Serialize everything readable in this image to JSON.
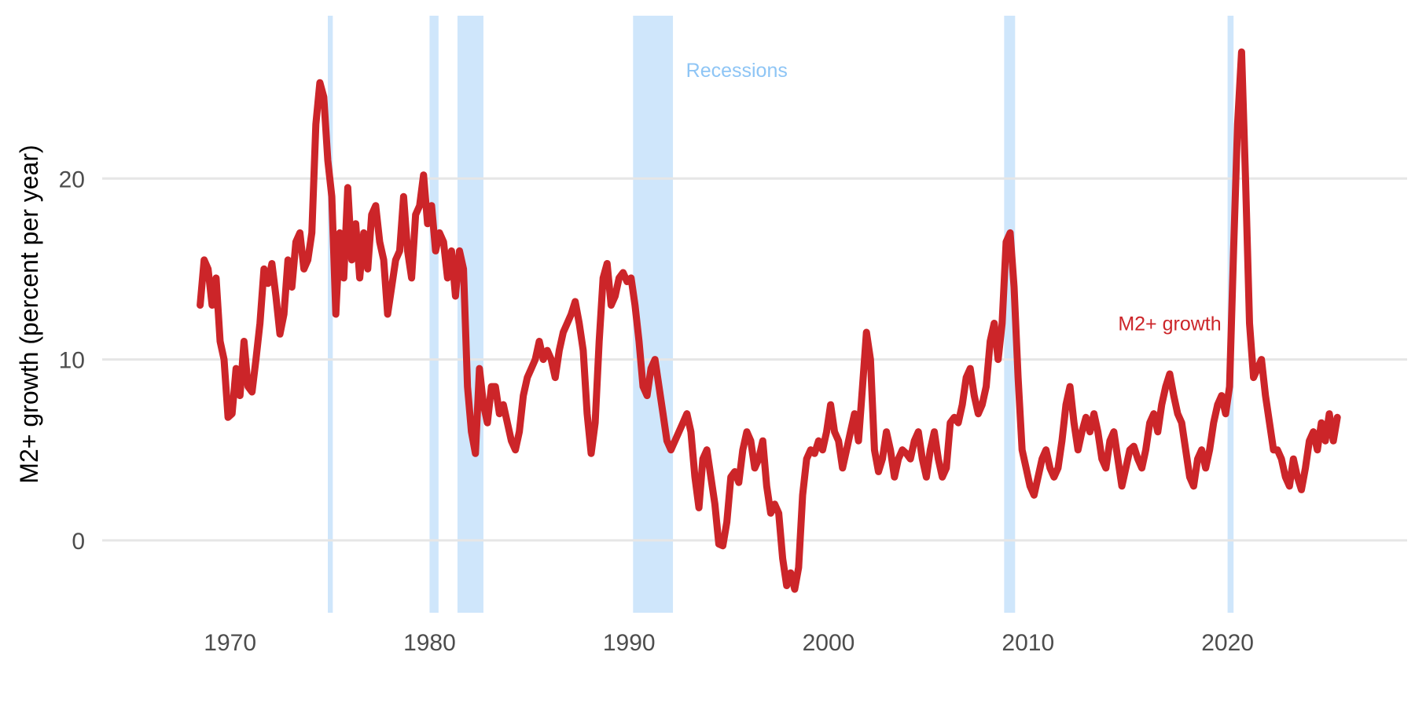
{
  "chart_data": {
    "type": "line",
    "title": "",
    "xlabel": "",
    "ylabel": "M2+ growth (percent per year)",
    "xlim": [
      1963,
      2029
    ],
    "ylim": [
      -4,
      29
    ],
    "x_ticks": [
      1970,
      1980,
      1990,
      2000,
      2010,
      2020
    ],
    "y_ticks": [
      0,
      10,
      20
    ],
    "grid": "horizontal major gridlines",
    "legend": "none (direct labels)",
    "colors": {
      "series": "#cc2529",
      "recession": "#cfe6fb",
      "recession_label": "#8ec5f5",
      "grid": "#e6e6e6"
    },
    "annotations": [
      {
        "text": "Recessions",
        "x": 1995.4,
        "y": 26,
        "color": "#8ec5f5"
      },
      {
        "text": "M2+ growth",
        "x": 2017.1,
        "y": 12,
        "color": "#cc2529"
      }
    ],
    "recessions": [
      [
        1974.9,
        1975.15
      ],
      [
        1980.0,
        1980.45
      ],
      [
        1981.4,
        1982.7
      ],
      [
        1990.2,
        1992.2
      ],
      [
        2008.8,
        2009.35
      ],
      [
        2020.0,
        2020.3
      ]
    ],
    "series": [
      {
        "name": "M2+ growth",
        "points": [
          [
            1968.5,
            13.0
          ],
          [
            1968.7,
            15.5
          ],
          [
            1968.9,
            15.0
          ],
          [
            1969.1,
            13.0
          ],
          [
            1969.3,
            14.5
          ],
          [
            1969.5,
            11.0
          ],
          [
            1969.7,
            10.0
          ],
          [
            1969.9,
            6.8
          ],
          [
            1970.1,
            7.0
          ],
          [
            1970.3,
            9.5
          ],
          [
            1970.5,
            8.0
          ],
          [
            1970.7,
            11.0
          ],
          [
            1970.9,
            8.5
          ],
          [
            1971.1,
            8.2
          ],
          [
            1971.3,
            10.0
          ],
          [
            1971.5,
            12.0
          ],
          [
            1971.7,
            15.0
          ],
          [
            1971.9,
            14.2
          ],
          [
            1972.1,
            15.3
          ],
          [
            1972.3,
            13.5
          ],
          [
            1972.5,
            11.4
          ],
          [
            1972.7,
            12.5
          ],
          [
            1972.9,
            15.5
          ],
          [
            1973.1,
            14.0
          ],
          [
            1973.3,
            16.5
          ],
          [
            1973.5,
            17.0
          ],
          [
            1973.7,
            15.0
          ],
          [
            1973.9,
            15.5
          ],
          [
            1974.1,
            17.0
          ],
          [
            1974.3,
            23.0
          ],
          [
            1974.5,
            25.3
          ],
          [
            1974.7,
            24.5
          ],
          [
            1974.9,
            21.0
          ],
          [
            1975.1,
            19.0
          ],
          [
            1975.3,
            12.5
          ],
          [
            1975.5,
            17.0
          ],
          [
            1975.7,
            14.5
          ],
          [
            1975.9,
            19.5
          ],
          [
            1976.1,
            15.5
          ],
          [
            1976.3,
            17.5
          ],
          [
            1976.5,
            14.5
          ],
          [
            1976.7,
            17.0
          ],
          [
            1976.9,
            15.0
          ],
          [
            1977.1,
            18.0
          ],
          [
            1977.3,
            18.5
          ],
          [
            1977.5,
            16.5
          ],
          [
            1977.7,
            15.5
          ],
          [
            1977.9,
            12.5
          ],
          [
            1978.1,
            14.0
          ],
          [
            1978.3,
            15.5
          ],
          [
            1978.5,
            16.0
          ],
          [
            1978.7,
            19.0
          ],
          [
            1978.9,
            16.0
          ],
          [
            1979.1,
            14.5
          ],
          [
            1979.3,
            18.0
          ],
          [
            1979.5,
            18.5
          ],
          [
            1979.7,
            20.2
          ],
          [
            1979.9,
            17.5
          ],
          [
            1980.1,
            18.5
          ],
          [
            1980.3,
            16.0
          ],
          [
            1980.5,
            17.0
          ],
          [
            1980.7,
            16.5
          ],
          [
            1980.9,
            14.5
          ],
          [
            1981.1,
            16.0
          ],
          [
            1981.3,
            13.5
          ],
          [
            1981.5,
            16.0
          ],
          [
            1981.7,
            15.0
          ],
          [
            1981.9,
            8.5
          ],
          [
            1982.1,
            6.0
          ],
          [
            1982.3,
            4.8
          ],
          [
            1982.5,
            9.5
          ],
          [
            1982.7,
            7.5
          ],
          [
            1982.9,
            6.5
          ],
          [
            1983.1,
            8.5
          ],
          [
            1983.3,
            8.5
          ],
          [
            1983.5,
            7.0
          ],
          [
            1983.7,
            7.5
          ],
          [
            1983.9,
            6.5
          ],
          [
            1984.1,
            5.5
          ],
          [
            1984.3,
            5.0
          ],
          [
            1984.5,
            6.0
          ],
          [
            1984.7,
            8.0
          ],
          [
            1984.9,
            9.0
          ],
          [
            1985.1,
            9.5
          ],
          [
            1985.3,
            10.0
          ],
          [
            1985.5,
            11.0
          ],
          [
            1985.7,
            10.0
          ],
          [
            1985.9,
            10.5
          ],
          [
            1986.1,
            10.0
          ],
          [
            1986.3,
            9.0
          ],
          [
            1986.5,
            10.5
          ],
          [
            1986.7,
            11.5
          ],
          [
            1986.9,
            12.0
          ],
          [
            1987.1,
            12.5
          ],
          [
            1987.3,
            13.2
          ],
          [
            1987.5,
            12.0
          ],
          [
            1987.7,
            10.5
          ],
          [
            1987.9,
            7.0
          ],
          [
            1988.1,
            4.8
          ],
          [
            1988.3,
            6.5
          ],
          [
            1988.5,
            11.0
          ],
          [
            1988.7,
            14.5
          ],
          [
            1988.9,
            15.3
          ],
          [
            1989.1,
            13.0
          ],
          [
            1989.3,
            13.5
          ],
          [
            1989.5,
            14.5
          ],
          [
            1989.7,
            14.8
          ],
          [
            1989.9,
            14.3
          ],
          [
            1990.1,
            14.5
          ],
          [
            1990.3,
            13.0
          ],
          [
            1990.5,
            11.0
          ],
          [
            1990.7,
            8.5
          ],
          [
            1990.9,
            8.0
          ],
          [
            1991.1,
            9.5
          ],
          [
            1991.3,
            10.0
          ],
          [
            1991.5,
            8.5
          ],
          [
            1991.7,
            7.0
          ],
          [
            1991.9,
            5.5
          ],
          [
            1992.1,
            5.0
          ],
          [
            1992.3,
            5.5
          ],
          [
            1992.5,
            6.0
          ],
          [
            1992.7,
            6.5
          ],
          [
            1992.9,
            7.0
          ],
          [
            1993.1,
            6.0
          ],
          [
            1993.3,
            3.5
          ],
          [
            1993.5,
            1.8
          ],
          [
            1993.7,
            4.5
          ],
          [
            1993.9,
            5.0
          ],
          [
            1994.1,
            3.5
          ],
          [
            1994.3,
            2.0
          ],
          [
            1994.5,
            -0.2
          ],
          [
            1994.7,
            -0.3
          ],
          [
            1994.9,
            1.0
          ],
          [
            1995.1,
            3.5
          ],
          [
            1995.3,
            3.8
          ],
          [
            1995.5,
            3.2
          ],
          [
            1995.7,
            5.0
          ],
          [
            1995.9,
            6.0
          ],
          [
            1996.1,
            5.5
          ],
          [
            1996.3,
            4.0
          ],
          [
            1996.5,
            4.5
          ],
          [
            1996.7,
            5.5
          ],
          [
            1996.9,
            3.0
          ],
          [
            1997.1,
            1.5
          ],
          [
            1997.3,
            2.0
          ],
          [
            1997.5,
            1.5
          ],
          [
            1997.7,
            -1.0
          ],
          [
            1997.9,
            -2.5
          ],
          [
            1998.1,
            -1.8
          ],
          [
            1998.3,
            -2.7
          ],
          [
            1998.5,
            -1.5
          ],
          [
            1998.7,
            2.5
          ],
          [
            1998.9,
            4.5
          ],
          [
            1999.1,
            5.0
          ],
          [
            1999.3,
            4.8
          ],
          [
            1999.5,
            5.5
          ],
          [
            1999.7,
            5.0
          ],
          [
            1999.9,
            6.0
          ],
          [
            2000.1,
            7.5
          ],
          [
            2000.3,
            6.0
          ],
          [
            2000.5,
            5.5
          ],
          [
            2000.7,
            4.0
          ],
          [
            2000.9,
            5.0
          ],
          [
            2001.1,
            6.0
          ],
          [
            2001.3,
            7.0
          ],
          [
            2001.5,
            5.5
          ],
          [
            2001.7,
            8.5
          ],
          [
            2001.9,
            11.5
          ],
          [
            2002.1,
            10.0
          ],
          [
            2002.3,
            5.0
          ],
          [
            2002.5,
            3.8
          ],
          [
            2002.7,
            4.5
          ],
          [
            2002.9,
            6.0
          ],
          [
            2003.1,
            5.0
          ],
          [
            2003.3,
            3.5
          ],
          [
            2003.5,
            4.5
          ],
          [
            2003.7,
            5.0
          ],
          [
            2003.9,
            4.8
          ],
          [
            2004.1,
            4.5
          ],
          [
            2004.3,
            5.5
          ],
          [
            2004.5,
            6.0
          ],
          [
            2004.7,
            4.5
          ],
          [
            2004.9,
            3.5
          ],
          [
            2005.1,
            5.0
          ],
          [
            2005.3,
            6.0
          ],
          [
            2005.5,
            4.5
          ],
          [
            2005.7,
            3.5
          ],
          [
            2005.9,
            4.0
          ],
          [
            2006.1,
            6.5
          ],
          [
            2006.3,
            6.8
          ],
          [
            2006.5,
            6.5
          ],
          [
            2006.7,
            7.5
          ],
          [
            2006.9,
            9.0
          ],
          [
            2007.1,
            9.5
          ],
          [
            2007.3,
            8.0
          ],
          [
            2007.5,
            7.0
          ],
          [
            2007.7,
            7.5
          ],
          [
            2007.9,
            8.5
          ],
          [
            2008.1,
            11.0
          ],
          [
            2008.3,
            12.0
          ],
          [
            2008.5,
            10.0
          ],
          [
            2008.7,
            12.0
          ],
          [
            2008.9,
            16.5
          ],
          [
            2009.1,
            17.0
          ],
          [
            2009.3,
            14.0
          ],
          [
            2009.5,
            9.0
          ],
          [
            2009.7,
            5.0
          ],
          [
            2009.9,
            4.0
          ],
          [
            2010.1,
            3.0
          ],
          [
            2010.3,
            2.5
          ],
          [
            2010.5,
            3.5
          ],
          [
            2010.7,
            4.5
          ],
          [
            2010.9,
            5.0
          ],
          [
            2011.1,
            4.0
          ],
          [
            2011.3,
            3.5
          ],
          [
            2011.5,
            4.0
          ],
          [
            2011.7,
            5.5
          ],
          [
            2011.9,
            7.5
          ],
          [
            2012.1,
            8.5
          ],
          [
            2012.3,
            6.5
          ],
          [
            2012.5,
            5.0
          ],
          [
            2012.7,
            6.0
          ],
          [
            2012.9,
            6.8
          ],
          [
            2013.1,
            6.0
          ],
          [
            2013.3,
            7.0
          ],
          [
            2013.5,
            6.0
          ],
          [
            2013.7,
            4.5
          ],
          [
            2013.9,
            4.0
          ],
          [
            2014.1,
            5.5
          ],
          [
            2014.3,
            6.0
          ],
          [
            2014.5,
            4.5
          ],
          [
            2014.7,
            3.0
          ],
          [
            2014.9,
            4.0
          ],
          [
            2015.1,
            5.0
          ],
          [
            2015.3,
            5.2
          ],
          [
            2015.5,
            4.5
          ],
          [
            2015.7,
            4.0
          ],
          [
            2015.9,
            5.0
          ],
          [
            2016.1,
            6.5
          ],
          [
            2016.3,
            7.0
          ],
          [
            2016.5,
            6.0
          ],
          [
            2016.7,
            7.5
          ],
          [
            2016.9,
            8.5
          ],
          [
            2017.1,
            9.2
          ],
          [
            2017.3,
            8.0
          ],
          [
            2017.5,
            7.0
          ],
          [
            2017.7,
            6.5
          ],
          [
            2017.9,
            5.0
          ],
          [
            2018.1,
            3.5
          ],
          [
            2018.3,
            3.0
          ],
          [
            2018.5,
            4.5
          ],
          [
            2018.7,
            5.0
          ],
          [
            2018.9,
            4.0
          ],
          [
            2019.1,
            5.0
          ],
          [
            2019.3,
            6.5
          ],
          [
            2019.5,
            7.5
          ],
          [
            2019.7,
            8.0
          ],
          [
            2019.9,
            7.0
          ],
          [
            2020.1,
            8.5
          ],
          [
            2020.3,
            16.0
          ],
          [
            2020.5,
            23.0
          ],
          [
            2020.7,
            27.0
          ],
          [
            2020.9,
            20.0
          ],
          [
            2021.1,
            12.0
          ],
          [
            2021.3,
            9.0
          ],
          [
            2021.5,
            9.5
          ],
          [
            2021.7,
            10.0
          ],
          [
            2021.9,
            8.0
          ],
          [
            2022.1,
            6.5
          ],
          [
            2022.3,
            5.0
          ],
          [
            2022.5,
            5.0
          ],
          [
            2022.7,
            4.5
          ],
          [
            2022.9,
            3.5
          ],
          [
            2023.1,
            3.0
          ],
          [
            2023.3,
            4.5
          ],
          [
            2023.5,
            3.5
          ],
          [
            2023.7,
            2.8
          ],
          [
            2023.9,
            4.0
          ],
          [
            2024.1,
            5.5
          ],
          [
            2024.3,
            6.0
          ],
          [
            2024.5,
            5.0
          ],
          [
            2024.7,
            6.5
          ],
          [
            2024.9,
            5.5
          ],
          [
            2025.1,
            7.0
          ],
          [
            2025.3,
            5.5
          ],
          [
            2025.5,
            6.8
          ]
        ]
      }
    ]
  }
}
